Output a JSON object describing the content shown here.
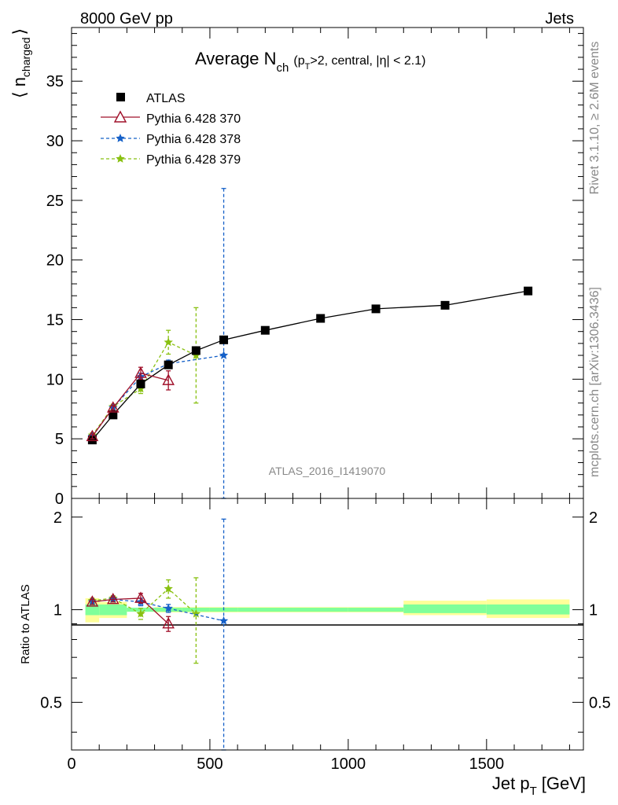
{
  "header": {
    "left": "8000 GeV pp",
    "right": "Jets"
  },
  "side": {
    "rivet": "Rivet 3.1.10, ≥ 2.6M events",
    "mcplots": "mcplots.cern.ch [arXiv:1306.3436]"
  },
  "watermark": "ATLAS_2016_I1419070",
  "colors": {
    "atlas": "#000000",
    "p370": "#a0102a",
    "p378": "#1560c8",
    "p379": "#88c010",
    "band_inner": "#80ff9a",
    "band_outer": "#ffff99"
  },
  "chart_data": [
    {
      "type": "scatter",
      "title": "Average N_ch (p_T>2, central, |η| < 2.1)",
      "title_parts": {
        "main": "Average N",
        "main_sub": "ch",
        "cut1": "(p",
        "cut1_sub": "T",
        "cut2": ">2, central, |η| < 2.1)"
      },
      "ylabel": "⟨ n_charged ⟩",
      "ylabel_parts": {
        "open": "⟨ n",
        "sub": "charged",
        "close": "⟩"
      },
      "xlim": [
        0,
        1850
      ],
      "ylim": [
        0,
        39.5
      ],
      "yticks": [
        0,
        5,
        10,
        15,
        20,
        25,
        30,
        35
      ],
      "legend_position": "top-left",
      "series": [
        {
          "name": "ATLAS",
          "marker": "square",
          "x": [
            75,
            150,
            250,
            350,
            450,
            550,
            700,
            900,
            1100,
            1350,
            1650
          ],
          "y": [
            4.9,
            7.0,
            9.6,
            11.2,
            12.4,
            13.3,
            14.1,
            15.1,
            15.9,
            16.2,
            17.4
          ]
        },
        {
          "name": "Pythia 6.428 370",
          "marker": "triangle",
          "style": "solid",
          "x": [
            75,
            150,
            250,
            350
          ],
          "y": [
            5.2,
            7.6,
            10.5,
            9.9
          ],
          "err": [
            0.2,
            0.2,
            0.5,
            0.8
          ]
        },
        {
          "name": "Pythia 6.428 378",
          "marker": "star",
          "style": "dashed",
          "x": [
            75,
            150,
            250,
            350,
            550
          ],
          "y": [
            5.2,
            7.6,
            10.2,
            11.3,
            12.0
          ],
          "err": [
            0.2,
            0.2,
            0.3,
            0.3,
            14.0
          ]
        },
        {
          "name": "Pythia 6.428 379",
          "marker": "star",
          "style": "dashed",
          "x": [
            75,
            150,
            250,
            350,
            450
          ],
          "y": [
            5.3,
            7.7,
            9.2,
            13.1,
            12.0
          ],
          "err": [
            0.2,
            0.2,
            0.4,
            1.0,
            4.0
          ]
        }
      ]
    },
    {
      "type": "scatter",
      "ylabel": "Ratio to ATLAS",
      "xlabel": "Jet p_T [GeV]",
      "xlabel_parts": {
        "main": "Jet p",
        "sub": "T",
        "unit": "[GeV]"
      },
      "xlim": [
        0,
        1850
      ],
      "xticks": [
        0,
        500,
        1000,
        1500
      ],
      "ylim": [
        0.35,
        2.3
      ],
      "yscale": "log",
      "yticks": [
        0.5,
        1,
        2
      ],
      "bands": [
        {
          "x0": 50,
          "x1": 100,
          "inner": [
            0.96,
            1.04
          ],
          "outer": [
            0.91,
            1.09
          ]
        },
        {
          "x0": 100,
          "x1": 200,
          "inner": [
            0.96,
            1.04
          ],
          "outer": [
            0.94,
            1.06
          ]
        },
        {
          "x0": 200,
          "x1": 300,
          "inner": [
            0.985,
            1.015
          ],
          "outer": [
            0.985,
            1.015
          ]
        },
        {
          "x0": 300,
          "x1": 400,
          "inner": [
            0.985,
            1.015
          ],
          "outer": [
            0.98,
            1.02
          ]
        },
        {
          "x0": 400,
          "x1": 500,
          "inner": [
            0.985,
            1.015
          ],
          "outer": [
            0.98,
            1.02
          ]
        },
        {
          "x0": 500,
          "x1": 600,
          "inner": [
            0.985,
            1.015
          ],
          "outer": [
            0.98,
            1.02
          ]
        },
        {
          "x0": 600,
          "x1": 800,
          "inner": [
            0.985,
            1.015
          ],
          "outer": [
            0.98,
            1.02
          ]
        },
        {
          "x0": 800,
          "x1": 1000,
          "inner": [
            0.985,
            1.015
          ],
          "outer": [
            0.98,
            1.02
          ]
        },
        {
          "x0": 1000,
          "x1": 1200,
          "inner": [
            0.985,
            1.015
          ],
          "outer": [
            0.98,
            1.02
          ]
        },
        {
          "x0": 1200,
          "x1": 1500,
          "inner": [
            0.975,
            1.04
          ],
          "outer": [
            0.96,
            1.07
          ]
        },
        {
          "x0": 1500,
          "x1": 1800,
          "inner": [
            0.965,
            1.04
          ],
          "outer": [
            0.94,
            1.08
          ]
        }
      ],
      "series": [
        {
          "name": "Pythia 6.428 370",
          "x": [
            75,
            150,
            250,
            350
          ],
          "y": [
            1.06,
            1.08,
            1.09,
            0.9
          ],
          "err": [
            0.02,
            0.02,
            0.04,
            0.05
          ]
        },
        {
          "name": "Pythia 6.428 378",
          "x": [
            75,
            150,
            250,
            350,
            550
          ],
          "y": [
            1.06,
            1.08,
            1.06,
            1.01,
            0.92
          ],
          "err": [
            0.02,
            0.02,
            0.03,
            0.03,
            1.05
          ]
        },
        {
          "name": "Pythia 6.428 379",
          "x": [
            75,
            150,
            250,
            350,
            450
          ],
          "y": [
            1.07,
            1.09,
            0.97,
            1.17,
            0.97
          ],
          "err": [
            0.02,
            0.02,
            0.04,
            0.08,
            0.3
          ]
        }
      ]
    }
  ]
}
